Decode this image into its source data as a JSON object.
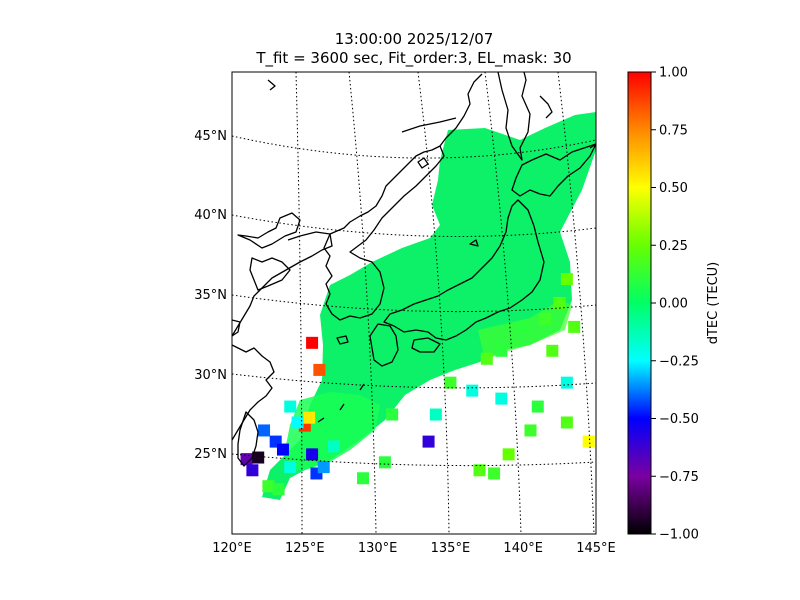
{
  "title": {
    "line1": "13:00:00 2025/12/07",
    "line2": "T_fit = 3600 sec, Fit_order:3, EL_mask: 30"
  },
  "map": {
    "lon_range": [
      120,
      145
    ],
    "lat_range": [
      20,
      49
    ],
    "lon_ticks": [
      {
        "value": 120,
        "label": "120°E"
      },
      {
        "value": 125,
        "label": "125°E"
      },
      {
        "value": 130,
        "label": "130°E"
      },
      {
        "value": 135,
        "label": "135°E"
      },
      {
        "value": 140,
        "label": "140°E"
      },
      {
        "value": 145,
        "label": "145°E"
      }
    ],
    "lat_ticks": [
      {
        "value": 25,
        "label": "25°N"
      },
      {
        "value": 30,
        "label": "30°N"
      },
      {
        "value": 35,
        "label": "35°N"
      },
      {
        "value": 40,
        "label": "40°N"
      },
      {
        "value": 45,
        "label": "45°N"
      }
    ],
    "graticule": "dotted",
    "coastline_color": "#000000"
  },
  "colorbar": {
    "label": "dTEC (TECU)",
    "range": [
      -1.0,
      1.0
    ],
    "ticks": [
      {
        "value": 1.0,
        "label": "1.00"
      },
      {
        "value": 0.75,
        "label": "0.75"
      },
      {
        "value": 0.5,
        "label": "0.50"
      },
      {
        "value": 0.25,
        "label": "0.25"
      },
      {
        "value": 0.0,
        "label": "0.00"
      },
      {
        "value": -0.25,
        "label": "−0.25"
      },
      {
        "value": -0.5,
        "label": "−0.50"
      },
      {
        "value": -0.75,
        "label": "−0.75"
      },
      {
        "value": -1.0,
        "label": "−1.00"
      }
    ],
    "colormap_stops": [
      "#000000",
      "#7a00a0",
      "#0000ff",
      "#00ffff",
      "#00ff66",
      "#66ff00",
      "#ffff00",
      "#ff8800",
      "#ff0000"
    ]
  },
  "dtec_cells": [
    {
      "lon": 125.5,
      "lat": 32.0,
      "value": 1.0
    },
    {
      "lon": 126.0,
      "lat": 30.3,
      "value": 0.85
    },
    {
      "lon": 125.0,
      "lat": 26.8,
      "value": 0.9
    },
    {
      "lon": 125.3,
      "lat": 27.3,
      "value": 0.55
    },
    {
      "lon": 121.0,
      "lat": 24.7,
      "value": -0.7
    },
    {
      "lon": 121.8,
      "lat": 24.8,
      "value": -0.95
    },
    {
      "lon": 121.4,
      "lat": 24.0,
      "value": -0.6
    },
    {
      "lon": 123.0,
      "lat": 25.8,
      "value": -0.45
    },
    {
      "lon": 123.5,
      "lat": 25.3,
      "value": -0.5
    },
    {
      "lon": 122.2,
      "lat": 26.5,
      "value": -0.4
    },
    {
      "lon": 125.8,
      "lat": 23.8,
      "value": -0.45
    },
    {
      "lon": 126.3,
      "lat": 24.2,
      "value": -0.35
    },
    {
      "lon": 125.5,
      "lat": 25.0,
      "value": -0.55
    },
    {
      "lon": 133.5,
      "lat": 25.8,
      "value": -0.6
    },
    {
      "lon": 124.0,
      "lat": 28.0,
      "value": -0.2
    },
    {
      "lon": 124.5,
      "lat": 27.0,
      "value": -0.25
    },
    {
      "lon": 127.0,
      "lat": 25.5,
      "value": -0.15
    },
    {
      "lon": 124.0,
      "lat": 24.2,
      "value": -0.2
    },
    {
      "lon": 122.5,
      "lat": 23.0,
      "value": 0.15
    },
    {
      "lon": 123.2,
      "lat": 22.8,
      "value": 0.1
    },
    {
      "lon": 136.5,
      "lat": 29.0,
      "value": -0.2
    },
    {
      "lon": 134.0,
      "lat": 27.5,
      "value": -0.15
    },
    {
      "lon": 138.5,
      "lat": 28.5,
      "value": -0.2
    },
    {
      "lon": 143.0,
      "lat": 29.5,
      "value": -0.2
    },
    {
      "lon": 144.5,
      "lat": 25.8,
      "value": 0.5
    },
    {
      "lon": 139.0,
      "lat": 25.0,
      "value": 0.25
    },
    {
      "lon": 137.0,
      "lat": 24.0,
      "value": 0.2
    },
    {
      "lon": 143.5,
      "lat": 33.0,
      "value": 0.2
    },
    {
      "lon": 142.5,
      "lat": 34.5,
      "value": 0.2
    },
    {
      "lon": 143.0,
      "lat": 36.0,
      "value": 0.25
    },
    {
      "lon": 141.5,
      "lat": 33.5,
      "value": 0.15
    },
    {
      "lon": 140.0,
      "lat": 33.0,
      "value": 0.1
    },
    {
      "lon": 138.5,
      "lat": 31.5,
      "value": 0.1
    },
    {
      "lon": 142.0,
      "lat": 31.5,
      "value": 0.2
    },
    {
      "lon": 137.5,
      "lat": 31.0,
      "value": 0.2
    },
    {
      "lon": 135.0,
      "lat": 29.5,
      "value": 0.15
    },
    {
      "lon": 141.0,
      "lat": 28.0,
      "value": 0.1
    },
    {
      "lon": 140.5,
      "lat": 26.5,
      "value": 0.15
    },
    {
      "lon": 143.0,
      "lat": 27.0,
      "value": 0.2
    },
    {
      "lon": 131.0,
      "lat": 27.5,
      "value": 0.1
    },
    {
      "lon": 130.5,
      "lat": 24.5,
      "value": 0.1
    },
    {
      "lon": 129.0,
      "lat": 23.5,
      "value": 0.1
    },
    {
      "lon": 138.0,
      "lat": 23.8,
      "value": 0.15
    }
  ]
}
